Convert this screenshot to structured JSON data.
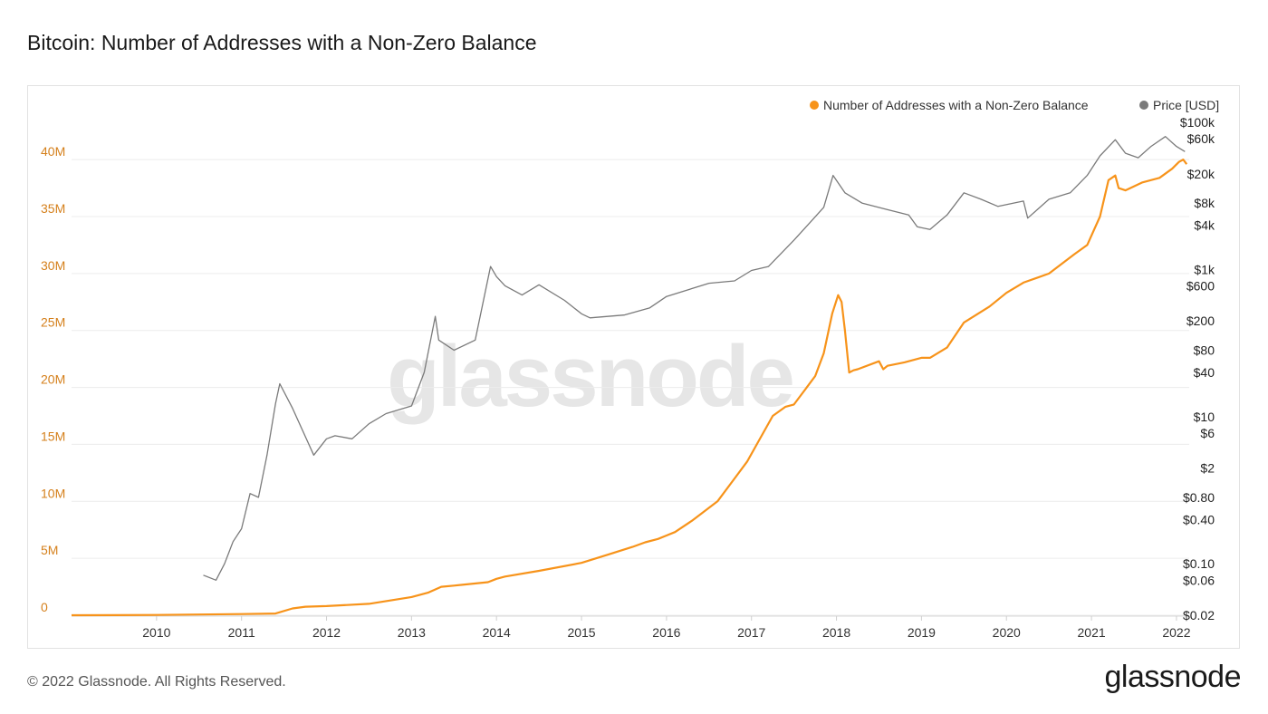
{
  "page": {
    "title": "Bitcoin: Number of Addresses with a Non-Zero Balance",
    "copyright": "© 2022 Glassnode. All Rights Reserved.",
    "logo": "glassnode",
    "watermark": "glassnode"
  },
  "colors": {
    "addresses": "#f7931a",
    "price": "#7a7a7a",
    "left_axis": "#d5801c"
  },
  "chart_data": {
    "type": "line",
    "title": "Bitcoin: Number of Addresses with a Non-Zero Balance",
    "legend_position": "top-right",
    "grid": true,
    "x_ticks": [
      "2010",
      "2011",
      "2012",
      "2013",
      "2014",
      "2015",
      "2016",
      "2017",
      "2018",
      "2019",
      "2020",
      "2021",
      "2022"
    ],
    "x_range": [
      2009.0,
      2022.15
    ],
    "y_left": {
      "ticks": [
        0,
        5,
        10,
        15,
        20,
        25,
        30,
        35,
        40
      ],
      "tick_labels": [
        "0",
        "5M",
        "10M",
        "15M",
        "20M",
        "25M",
        "30M",
        "35M",
        "40M"
      ],
      "range": [
        0,
        45.5
      ],
      "unit": "millions"
    },
    "y_right": {
      "scale": "log",
      "range": [
        0.02,
        100000
      ],
      "ticks": [
        100000,
        60000,
        20000,
        8000,
        4000,
        1000,
        600,
        200,
        80,
        40,
        10,
        6,
        2,
        0.8,
        0.4,
        0.1,
        0.06,
        0.02
      ],
      "tick_labels": [
        "$100k",
        "$60k",
        "$20k",
        "$8k",
        "$4k",
        "$1k",
        "$600",
        "$200",
        "$80",
        "$40",
        "$10",
        "$6",
        "$2",
        "$0.80",
        "$0.40",
        "$0.10",
        "$0.06",
        "$0.02"
      ]
    },
    "series": [
      {
        "name": "Number of Addresses with a Non-Zero Balance",
        "axis": "left",
        "x": [
          2009.0,
          2010.0,
          2011.0,
          2011.4,
          2011.6,
          2011.75,
          2012.0,
          2012.5,
          2013.0,
          2013.2,
          2013.35,
          2013.5,
          2013.9,
          2014.0,
          2014.1,
          2014.5,
          2015.0,
          2015.3,
          2015.6,
          2015.75,
          2015.9,
          2016.0,
          2016.1,
          2016.3,
          2016.6,
          2016.8,
          2016.95,
          2017.1,
          2017.25,
          2017.4,
          2017.5,
          2017.6,
          2017.75,
          2017.85,
          2017.95,
          2018.02,
          2018.06,
          2018.1,
          2018.15,
          2018.2,
          2018.25,
          2018.5,
          2018.55,
          2018.6,
          2018.8,
          2019.0,
          2019.1,
          2019.3,
          2019.5,
          2019.8,
          2020.0,
          2020.2,
          2020.5,
          2020.8,
          2020.95,
          2021.1,
          2021.2,
          2021.28,
          2021.32,
          2021.4,
          2021.6,
          2021.8,
          2021.95,
          2022.03,
          2022.08,
          2022.12
        ],
        "y": [
          0.0,
          0.02,
          0.1,
          0.15,
          0.6,
          0.75,
          0.8,
          1.0,
          1.6,
          2.0,
          2.5,
          2.6,
          2.9,
          3.2,
          3.4,
          3.9,
          4.6,
          5.3,
          6.0,
          6.4,
          6.7,
          7.0,
          7.3,
          8.3,
          10.0,
          12.0,
          13.5,
          15.5,
          17.5,
          18.3,
          18.5,
          19.5,
          21.0,
          23.0,
          26.5,
          28.1,
          27.5,
          25.0,
          21.3,
          21.5,
          21.6,
          22.3,
          21.6,
          21.9,
          22.2,
          22.6,
          22.6,
          23.5,
          25.7,
          27.1,
          28.3,
          29.2,
          30.0,
          31.7,
          32.5,
          35.0,
          38.2,
          38.6,
          37.5,
          37.3,
          38.0,
          38.4,
          39.2,
          39.8,
          40.0,
          39.6
        ]
      },
      {
        "name": "Price [USD]",
        "axis": "right",
        "x": [
          2010.55,
          2010.7,
          2010.8,
          2010.9,
          2011.0,
          2011.1,
          2011.2,
          2011.3,
          2011.4,
          2011.45,
          2011.6,
          2011.8,
          2011.85,
          2012.0,
          2012.1,
          2012.3,
          2012.5,
          2012.7,
          2013.0,
          2013.15,
          2013.28,
          2013.32,
          2013.5,
          2013.75,
          2013.93,
          2014.0,
          2014.1,
          2014.3,
          2014.5,
          2014.8,
          2015.0,
          2015.1,
          2015.5,
          2015.8,
          2016.0,
          2016.5,
          2016.8,
          2017.0,
          2017.2,
          2017.5,
          2017.7,
          2017.85,
          2017.96,
          2018.1,
          2018.3,
          2018.6,
          2018.85,
          2018.95,
          2019.1,
          2019.3,
          2019.5,
          2019.7,
          2019.9,
          2020.2,
          2020.25,
          2020.5,
          2020.75,
          2020.95,
          2021.1,
          2021.28,
          2021.4,
          2021.55,
          2021.7,
          2021.87,
          2022.0,
          2022.1
        ],
        "y": [
          0.07,
          0.06,
          0.1,
          0.2,
          0.3,
          0.9,
          0.8,
          3,
          15,
          28,
          13,
          4,
          3,
          5,
          5.5,
          5,
          8,
          11,
          14,
          40,
          230,
          110,
          80,
          110,
          1100,
          800,
          600,
          450,
          620,
          380,
          250,
          220,
          240,
          300,
          430,
          650,
          700,
          970,
          1100,
          2500,
          4500,
          7000,
          19000,
          11000,
          8000,
          6500,
          5500,
          3800,
          3500,
          5500,
          11000,
          9000,
          7200,
          8500,
          5000,
          9000,
          11000,
          19000,
          35000,
          58000,
          38000,
          33000,
          47000,
          64000,
          47000,
          40000
        ]
      }
    ]
  }
}
